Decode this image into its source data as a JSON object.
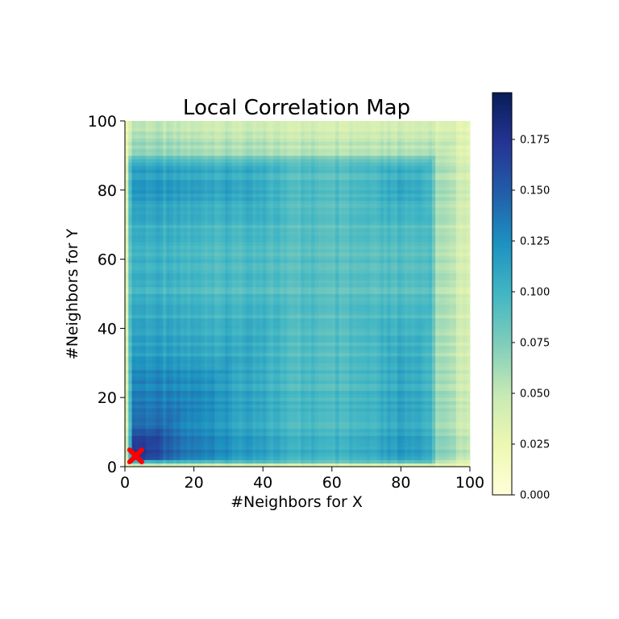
{
  "chart_data": {
    "type": "heatmap",
    "title": "Local Correlation Map",
    "xlabel": "#Neighbors for X",
    "ylabel": "#Neighbors for Y",
    "xlim": [
      0,
      100
    ],
    "ylim": [
      0,
      100
    ],
    "x_ticks": [
      0,
      20,
      40,
      60,
      80,
      100
    ],
    "y_ticks": [
      0,
      20,
      40,
      60,
      80,
      100
    ],
    "grid": false,
    "colormap": "YlGnBu",
    "colorbar": {
      "vmin": 0.0,
      "vmax": 0.198,
      "ticks": [
        0.0,
        0.025,
        0.05,
        0.075,
        0.1,
        0.125,
        0.15,
        0.175
      ],
      "tick_labels": [
        "0.000",
        "0.025",
        "0.050",
        "0.075",
        "0.100",
        "0.125",
        "0.150",
        "0.175"
      ]
    },
    "optimal_point": {
      "x": 3,
      "y": 3,
      "marker": "X",
      "color": "#ff0000"
    },
    "value_profile": {
      "x_neighbors": [
        0,
        2,
        4,
        8,
        12,
        16,
        20,
        25,
        30,
        40,
        50,
        60,
        70,
        80,
        85,
        88,
        90,
        95,
        100
      ],
      "value_at_diagonal": [
        0.02,
        0.17,
        0.175,
        0.16,
        0.14,
        0.13,
        0.125,
        0.125,
        0.11,
        0.1,
        0.09,
        0.09,
        0.095,
        0.11,
        0.105,
        0.09,
        0.055,
        0.04,
        0.03
      ]
    }
  }
}
